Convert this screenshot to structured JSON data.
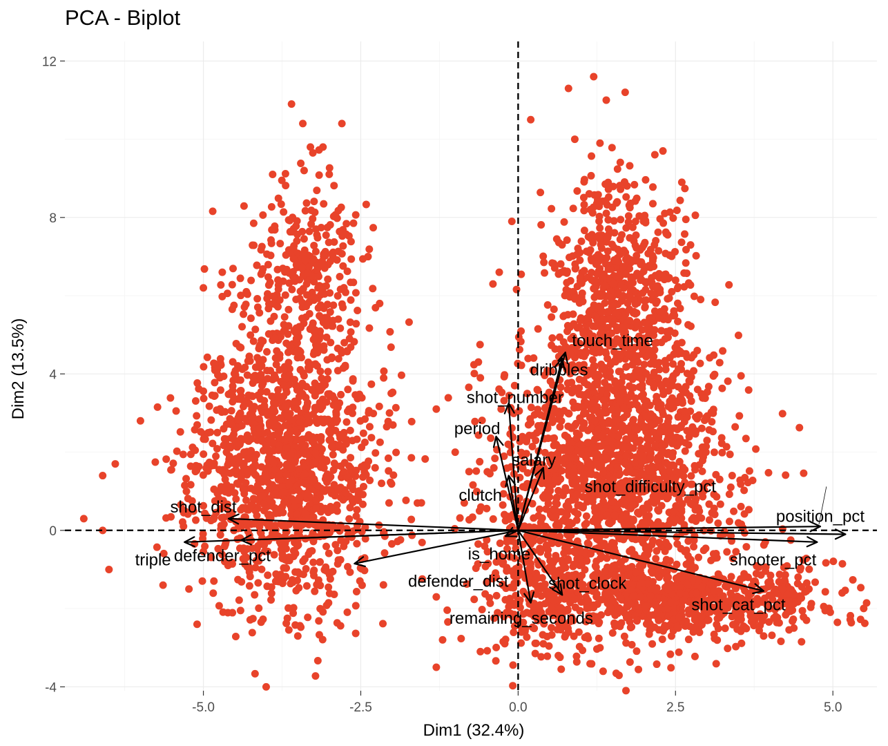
{
  "chart_data": {
    "type": "scatter",
    "title": "PCA - Biplot",
    "xlabel": "Dim1 (32.4%)",
    "ylabel": "Dim2 (13.5%)",
    "xlim": [
      -7.2,
      5.7
    ],
    "ylim": [
      -4.1,
      12.5
    ],
    "x_ticks": [
      -5.0,
      -2.5,
      0.0,
      2.5,
      5.0
    ],
    "x_tick_labels": [
      "-5.0",
      "-2.5",
      "0.0",
      "2.5",
      "5.0"
    ],
    "y_ticks": [
      -4,
      0,
      4,
      8,
      12
    ],
    "y_tick_labels": [
      "-4",
      "0",
      "4",
      "8",
      "12"
    ],
    "grid": true,
    "point_color": "#e8432a",
    "reference_lines": {
      "x": 0,
      "y": 0
    },
    "clusters": [
      {
        "center": [
          -3.7,
          1.6
        ],
        "spread": [
          0.72,
          1.75
        ],
        "count": 1400,
        "seed": 11
      },
      {
        "center": [
          -3.4,
          6.4
        ],
        "spread": [
          0.45,
          1.3
        ],
        "count": 320,
        "seed": 23
      },
      {
        "center": [
          1.6,
          5.9
        ],
        "spread": [
          0.5,
          1.6
        ],
        "count": 700,
        "seed": 37
      },
      {
        "center": [
          1.6,
          1.3
        ],
        "spread": [
          0.95,
          1.9
        ],
        "count": 1700,
        "seed": 53
      },
      {
        "center": [
          2.7,
          -1.8
        ],
        "spread": [
          1.2,
          0.45
        ],
        "count": 700,
        "seed": 71
      },
      {
        "center": [
          0.3,
          -1.4
        ],
        "spread": [
          0.45,
          1.0
        ],
        "count": 220,
        "seed": 89
      }
    ],
    "outliers": [
      [
        -3.6,
        10.9
      ],
      [
        -2.8,
        10.4
      ],
      [
        -3.3,
        9.8
      ],
      [
        -3.1,
        9.8
      ],
      [
        -3.9,
        9.1
      ],
      [
        -3.4,
        9.2
      ],
      [
        -5.0,
        6.2
      ],
      [
        -2.2,
        5.8
      ],
      [
        -4.7,
        6.6
      ],
      [
        -6.0,
        2.8
      ],
      [
        -6.4,
        1.7
      ],
      [
        -6.6,
        1.4
      ],
      [
        -6.9,
        0.3
      ],
      [
        -6.6,
        0.0
      ],
      [
        -6.5,
        -1.0
      ],
      [
        -5.1,
        -2.4
      ],
      [
        -3.5,
        -2.7
      ],
      [
        -1.6,
        0.7
      ],
      [
        -1.3,
        3.1
      ],
      [
        -1.0,
        2.0
      ],
      [
        -1.3,
        -1.7
      ],
      [
        -1.2,
        -2.8
      ],
      [
        -1.3,
        -3.5
      ],
      [
        -0.6,
        -3.1
      ],
      [
        1.2,
        11.6
      ],
      [
        0.8,
        11.3
      ],
      [
        1.4,
        11.0
      ],
      [
        1.7,
        11.2
      ],
      [
        0.2,
        10.5
      ],
      [
        2.3,
        9.7
      ],
      [
        2.6,
        8.9
      ],
      [
        0.9,
        10.0
      ],
      [
        1.3,
        9.9
      ],
      [
        -0.1,
        7.9
      ],
      [
        -0.3,
        6.6
      ],
      [
        2.6,
        4.8
      ],
      [
        3.4,
        1.4
      ],
      [
        4.0,
        -1.3
      ],
      [
        4.2,
        -1.5
      ],
      [
        3.9,
        -2.7
      ],
      [
        3.5,
        -2.3
      ],
      [
        1.3,
        -3.0
      ],
      [
        0.4,
        -2.9
      ],
      [
        0.8,
        -2.6
      ],
      [
        1.1,
        -2.7
      ],
      [
        -0.4,
        6.3
      ],
      [
        -0.6,
        3.9
      ],
      [
        3.0,
        2.3
      ]
    ],
    "loadings": [
      {
        "name": "touch_time",
        "x": 0.75,
        "y": 4.55,
        "label_x": 1.5,
        "label_y": 4.85
      },
      {
        "name": "dribbles",
        "x": 0.7,
        "y": 4.4,
        "label_x": 0.65,
        "label_y": 4.1
      },
      {
        "name": "shot_number",
        "x": -0.15,
        "y": 3.25,
        "label_x": -0.05,
        "label_y": 3.4
      },
      {
        "name": "period",
        "x": -0.35,
        "y": 2.4,
        "label_x": -0.65,
        "label_y": 2.6
      },
      {
        "name": "salary",
        "x": 0.4,
        "y": 1.6,
        "label_x": 0.25,
        "label_y": 1.8
      },
      {
        "name": "clutch",
        "x": -0.15,
        "y": 1.4,
        "label_x": -0.6,
        "label_y": 0.9
      },
      {
        "name": "shot_difficulty_pct",
        "x": 4.8,
        "y": 0.1,
        "label_x": 2.1,
        "label_y": 1.12,
        "leader": true
      },
      {
        "name": "position_pct",
        "x": 5.2,
        "y": -0.1,
        "label_x": 4.8,
        "label_y": 0.36
      },
      {
        "name": "shooter_pct",
        "x": 4.75,
        "y": -0.3,
        "label_x": 4.05,
        "label_y": -0.75
      },
      {
        "name": "shot_cat_pct",
        "x": 3.9,
        "y": -1.55,
        "label_x": 3.5,
        "label_y": -1.9
      },
      {
        "name": "shot_clock",
        "x": 0.7,
        "y": -1.65,
        "label_x": 1.1,
        "label_y": -1.35
      },
      {
        "name": "remaining_seconds",
        "x": 0.2,
        "y": -1.85,
        "label_x": 0.05,
        "label_y": -2.25
      },
      {
        "name": "is_home",
        "x": -0.2,
        "y": -0.15,
        "label_x": -0.3,
        "label_y": -0.6
      },
      {
        "name": "defender_dist",
        "x": -2.6,
        "y": -0.85,
        "label_x": -0.95,
        "label_y": -1.3
      },
      {
        "name": "defender_pct",
        "x": -4.4,
        "y": -0.25,
        "label_x": -4.7,
        "label_y": -0.65
      },
      {
        "name": "triple",
        "x": -5.3,
        "y": -0.3,
        "label_x": -5.8,
        "label_y": -0.75
      },
      {
        "name": "shot_dist",
        "x": -4.6,
        "y": 0.3,
        "label_x": -5.0,
        "label_y": 0.6
      }
    ]
  }
}
